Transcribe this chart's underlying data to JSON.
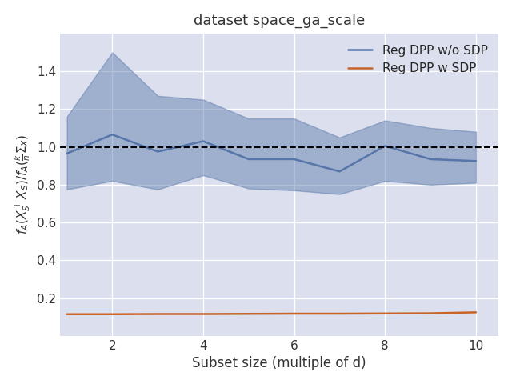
{
  "title": "dataset space_ga_scale",
  "xlabel": "Subset size (multiple of d)",
  "x": [
    1,
    2,
    3,
    4,
    5,
    6,
    7,
    8,
    9,
    10
  ],
  "blue_mean": [
    0.965,
    1.065,
    0.975,
    1.03,
    0.935,
    0.935,
    0.87,
    1.005,
    0.935,
    0.925
  ],
  "blue_upper": [
    1.16,
    1.5,
    1.27,
    1.25,
    1.15,
    1.15,
    1.05,
    1.14,
    1.1,
    1.08
  ],
  "blue_lower": [
    0.775,
    0.82,
    0.775,
    0.85,
    0.78,
    0.77,
    0.75,
    0.82,
    0.8,
    0.81
  ],
  "orange_mean": [
    0.115,
    0.115,
    0.116,
    0.116,
    0.117,
    0.118,
    0.118,
    0.119,
    0.12,
    0.125
  ],
  "blue_color": "#5675a8",
  "orange_color": "#c86427",
  "blue_fill_alpha": 0.45,
  "axes_bg_color": "#dce0ee",
  "figure_bg_color": "#ffffff",
  "grid_color": "#ffffff",
  "dashed_line_y": 1.0,
  "ylim": [
    0.0,
    1.6
  ],
  "xlim": [
    1.0,
    10.5
  ],
  "legend_labels": [
    "Reg DPP w/o SDP",
    "Reg DPP w SDP"
  ],
  "xticks": [
    2,
    4,
    6,
    8,
    10
  ],
  "yticks": [
    0.2,
    0.4,
    0.6,
    0.8,
    1.0,
    1.2,
    1.4
  ]
}
